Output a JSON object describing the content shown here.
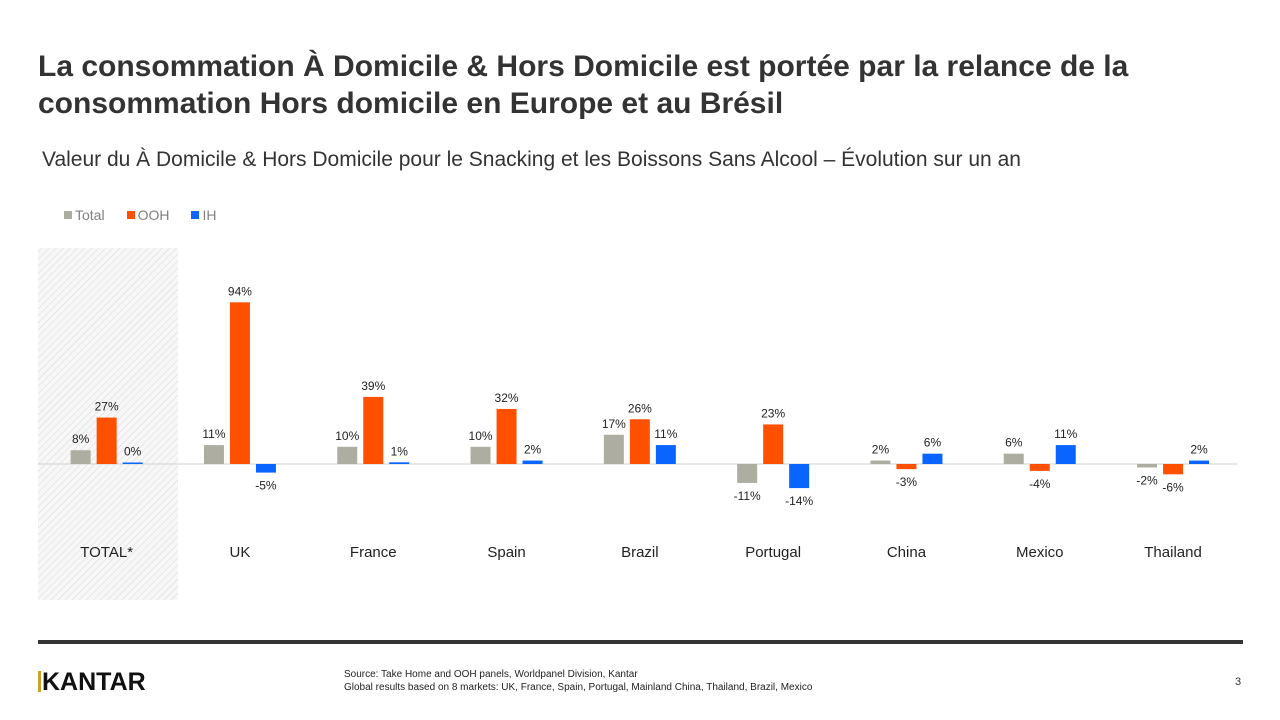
{
  "title": "La consommation À Domicile & Hors Domicile est portée par la relance de la consommation Hors domicile en Europe et au Brésil",
  "subtitle": "Valeur du À Domicile & Hors Domicile pour le Snacking et les Boissons Sans Alcool – Évolution sur un an",
  "chart_data": {
    "type": "bar",
    "categories": [
      "TOTAL*",
      "UK",
      "France",
      "Spain",
      "Brazil",
      "Portugal",
      "China",
      "Mexico",
      "Thailand"
    ],
    "series": [
      {
        "name": "Total",
        "color": "#aeada2",
        "values": [
          8,
          11,
          10,
          10,
          17,
          -11,
          2,
          6,
          -2
        ]
      },
      {
        "name": "OOH",
        "color": "#ff5000",
        "values": [
          27,
          94,
          39,
          32,
          26,
          23,
          -3,
          -4,
          -6
        ]
      },
      {
        "name": "IH",
        "color": "#0a64ff",
        "values": [
          0,
          -5,
          1,
          2,
          11,
          -14,
          6,
          11,
          2
        ]
      }
    ],
    "data_label_suffix": "%",
    "highlighted_category": "TOTAL*",
    "legend_position": "top-left",
    "grid": false
  },
  "footer": {
    "logo": "KANTAR",
    "source_line1": "Source: Take Home and OOH  panels, Worldpanel Division,  Kantar",
    "source_line2": "Global results based on 8 markets: UK,  France, Spain, Portugal,  Mainland  China,  Thailand,  Brazil, Mexico",
    "page_number": "3"
  }
}
